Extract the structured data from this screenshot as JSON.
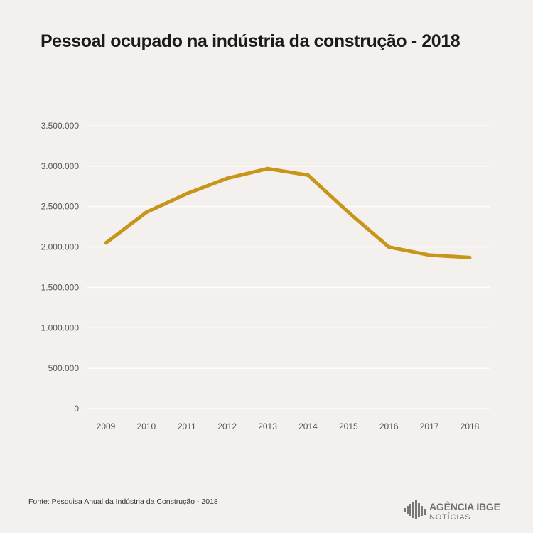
{
  "title": "Pessoal ocupado na indústria da construção - 2018",
  "source": "Fonte:  Pesquisa Anual da Indústria da Construção - 2018",
  "logo": {
    "main": "AGÊNCIA IBGE",
    "sub": "NOTÍCIAS"
  },
  "colors": {
    "background": "#f3f0ee",
    "line": "#c8951b",
    "grid": "#ffffff",
    "text": "#555555"
  },
  "chart_data": {
    "type": "line",
    "title": "Pessoal ocupado na indústria da construção - 2018",
    "xlabel": "",
    "ylabel": "",
    "categories": [
      "2009",
      "2010",
      "2011",
      "2012",
      "2013",
      "2014",
      "2015",
      "2016",
      "2017",
      "2018"
    ],
    "values": [
      2050000,
      2430000,
      2660000,
      2850000,
      2970000,
      2890000,
      2430000,
      2000000,
      1900000,
      1870000
    ],
    "ylim": [
      0,
      3500000
    ],
    "yticks": [
      0,
      500000,
      1000000,
      1500000,
      2000000,
      2500000,
      3000000,
      3500000
    ],
    "ytick_labels": [
      "0",
      "500.000",
      "1.000.000",
      "1.500.000",
      "2.000.000",
      "2.500.000",
      "3.000.000",
      "3.500.000"
    ],
    "grid": true,
    "legend": "none"
  }
}
